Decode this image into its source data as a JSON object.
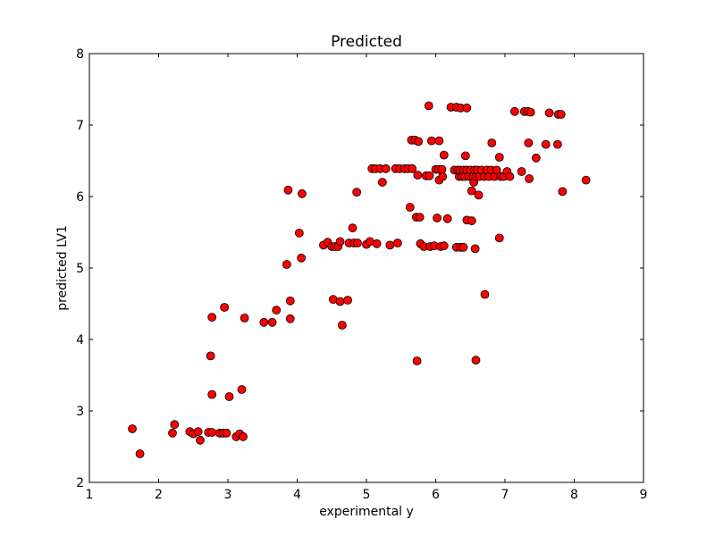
{
  "chart_data": {
    "type": "scatter",
    "title": "Predicted",
    "xlabel": "experimental y",
    "ylabel": "predicted LV1",
    "xlim": [
      1,
      9
    ],
    "ylim": [
      2,
      8
    ],
    "xticks": [
      1,
      2,
      3,
      4,
      5,
      6,
      7,
      8,
      9
    ],
    "yticks": [
      2,
      3,
      4,
      5,
      6,
      7,
      8
    ],
    "grid": false,
    "legend": "none",
    "marker_color": "#ff0000",
    "marker_edge_color": "#000000",
    "points": [
      [
        1.62,
        2.75
      ],
      [
        1.73,
        2.4
      ],
      [
        2.2,
        2.69
      ],
      [
        2.23,
        2.81
      ],
      [
        2.45,
        2.71
      ],
      [
        2.5,
        2.68
      ],
      [
        2.57,
        2.71
      ],
      [
        2.6,
        2.59
      ],
      [
        2.72,
        2.7
      ],
      [
        2.77,
        2.7
      ],
      [
        2.88,
        2.69
      ],
      [
        2.93,
        2.69
      ],
      [
        2.98,
        2.69
      ],
      [
        3.12,
        2.64
      ],
      [
        3.17,
        2.68
      ],
      [
        3.22,
        2.64
      ],
      [
        2.75,
        3.77
      ],
      [
        2.77,
        3.23
      ],
      [
        2.77,
        4.31
      ],
      [
        2.95,
        4.45
      ],
      [
        3.02,
        3.2
      ],
      [
        3.2,
        3.3
      ],
      [
        3.24,
        4.3
      ],
      [
        3.52,
        4.24
      ],
      [
        3.64,
        4.24
      ],
      [
        3.7,
        4.41
      ],
      [
        3.85,
        5.05
      ],
      [
        3.87,
        6.09
      ],
      [
        3.9,
        4.54
      ],
      [
        3.9,
        4.29
      ],
      [
        4.03,
        5.49
      ],
      [
        4.06,
        5.14
      ],
      [
        4.07,
        6.04
      ],
      [
        4.38,
        5.32
      ],
      [
        4.44,
        5.36
      ],
      [
        4.5,
        5.3
      ],
      [
        4.52,
        4.56
      ],
      [
        4.54,
        5.3
      ],
      [
        4.59,
        5.3
      ],
      [
        4.62,
        4.53
      ],
      [
        4.62,
        5.37
      ],
      [
        4.65,
        4.2
      ],
      [
        4.73,
        4.55
      ],
      [
        4.75,
        5.35
      ],
      [
        4.8,
        5.56
      ],
      [
        4.82,
        5.35
      ],
      [
        4.87,
        5.35
      ],
      [
        4.86,
        6.06
      ],
      [
        5.0,
        5.33
      ],
      [
        5.05,
        5.37
      ],
      [
        5.08,
        6.39
      ],
      [
        5.13,
        6.39
      ],
      [
        5.15,
        5.34
      ],
      [
        5.2,
        6.39
      ],
      [
        5.23,
        6.2
      ],
      [
        5.28,
        6.39
      ],
      [
        5.34,
        5.32
      ],
      [
        5.42,
        6.39
      ],
      [
        5.45,
        5.35
      ],
      [
        5.48,
        6.39
      ],
      [
        5.55,
        6.39
      ],
      [
        5.6,
        6.39
      ],
      [
        5.63,
        5.85
      ],
      [
        5.66,
        6.39
      ],
      [
        5.65,
        6.79
      ],
      [
        5.7,
        6.79
      ],
      [
        5.72,
        5.71
      ],
      [
        5.73,
        3.7
      ],
      [
        5.74,
        6.3
      ],
      [
        5.75,
        6.77
      ],
      [
        5.77,
        5.71
      ],
      [
        5.78,
        5.34
      ],
      [
        5.83,
        5.3
      ],
      [
        5.86,
        6.29
      ],
      [
        5.9,
        7.27
      ],
      [
        5.91,
        6.29
      ],
      [
        5.92,
        5.3
      ],
      [
        5.94,
        6.78
      ],
      [
        5.98,
        5.31
      ],
      [
        6.0,
        6.38
      ],
      [
        6.02,
        5.7
      ],
      [
        6.04,
        6.38
      ],
      [
        6.05,
        6.78
      ],
      [
        6.05,
        6.23
      ],
      [
        6.07,
        5.3
      ],
      [
        6.09,
        6.38
      ],
      [
        6.1,
        6.28
      ],
      [
        6.12,
        6.58
      ],
      [
        6.12,
        5.31
      ],
      [
        6.17,
        5.69
      ],
      [
        6.22,
        7.25
      ],
      [
        6.27,
        6.37
      ],
      [
        6.3,
        7.25
      ],
      [
        6.3,
        5.29
      ],
      [
        6.32,
        6.37
      ],
      [
        6.34,
        6.28
      ],
      [
        6.35,
        6.37
      ],
      [
        6.36,
        7.24
      ],
      [
        6.36,
        5.29
      ],
      [
        6.38,
        6.28
      ],
      [
        6.4,
        6.37
      ],
      [
        6.4,
        5.29
      ],
      [
        6.42,
        6.28
      ],
      [
        6.43,
        6.57
      ],
      [
        6.45,
        7.24
      ],
      [
        6.45,
        6.37
      ],
      [
        6.45,
        5.67
      ],
      [
        6.48,
        6.28
      ],
      [
        6.5,
        6.37
      ],
      [
        6.52,
        6.08
      ],
      [
        6.52,
        5.66
      ],
      [
        6.54,
        6.28
      ],
      [
        6.55,
        6.2
      ],
      [
        6.56,
        6.37
      ],
      [
        6.57,
        5.27
      ],
      [
        6.58,
        6.28
      ],
      [
        6.58,
        3.71
      ],
      [
        6.6,
        6.37
      ],
      [
        6.62,
        6.02
      ],
      [
        6.63,
        6.28
      ],
      [
        6.66,
        6.37
      ],
      [
        6.7,
        6.28
      ],
      [
        6.71,
        4.63
      ],
      [
        6.74,
        6.37
      ],
      [
        6.77,
        6.28
      ],
      [
        6.8,
        6.37
      ],
      [
        6.81,
        6.75
      ],
      [
        6.85,
        6.28
      ],
      [
        6.88,
        6.37
      ],
      [
        6.92,
        6.55
      ],
      [
        6.92,
        5.42
      ],
      [
        6.94,
        6.28
      ],
      [
        6.98,
        6.28
      ],
      [
        7.03,
        6.35
      ],
      [
        7.07,
        6.28
      ],
      [
        7.14,
        7.19
      ],
      [
        7.24,
        6.35
      ],
      [
        7.28,
        7.19
      ],
      [
        7.33,
        7.19
      ],
      [
        7.34,
        6.75
      ],
      [
        7.35,
        6.25
      ],
      [
        7.37,
        7.18
      ],
      [
        7.45,
        6.54
      ],
      [
        7.59,
        6.73
      ],
      [
        7.64,
        7.17
      ],
      [
        7.76,
        6.73
      ],
      [
        7.77,
        7.15
      ],
      [
        7.81,
        7.15
      ],
      [
        7.83,
        6.07
      ],
      [
        8.17,
        6.23
      ]
    ]
  }
}
